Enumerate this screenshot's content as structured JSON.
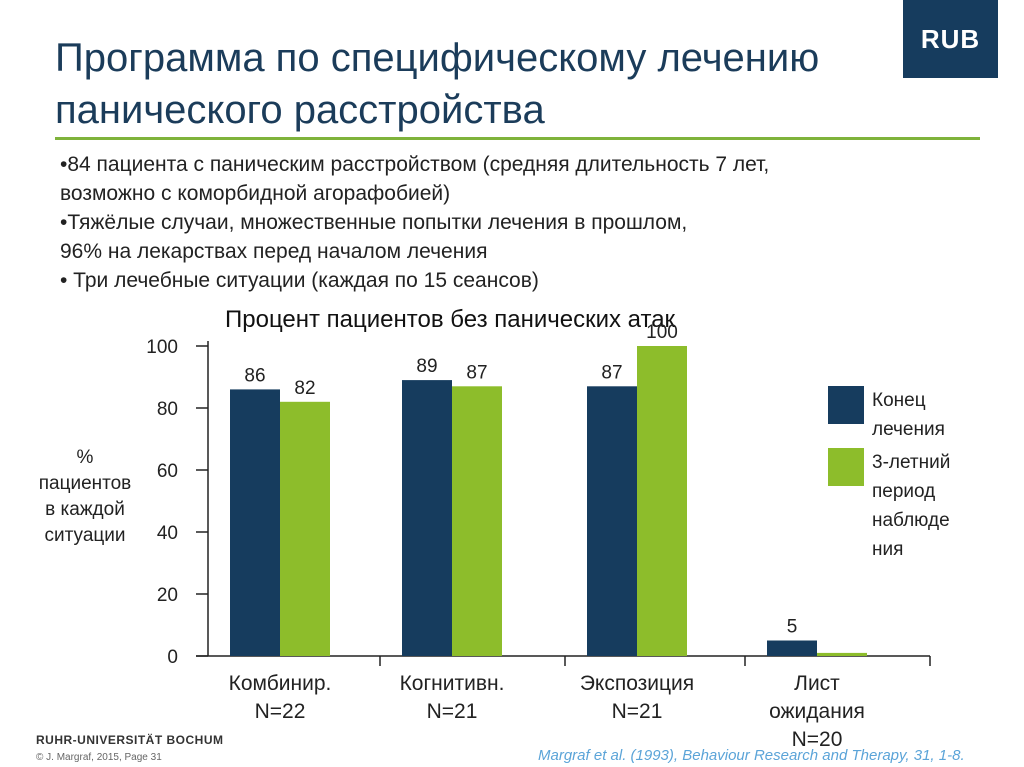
{
  "slide": {
    "title_line1": "Программа по специфическому лечению",
    "title_line2": "панического расстройства",
    "logo": "RUB",
    "bullets": [
      "•84 пациента с паническим расстройством (средняя длительность 7 лет,",
      "возможно с коморбидной агорафобией)",
      "•Тяжёлые случаи, множественные попытки лечения в прошлом,",
      "96% на лекарствах перед началом лечения",
      "• Три лечебные ситуации (каждая по 15 сеансов)"
    ],
    "footer_university": "RUHR-UNIVERSITÄT BOCHUM",
    "footer_copyright": "© J. Margraf, 2015, Page 31",
    "reference": "Margraf et al. (1993), Behaviour Research and Therapy, 31, 1-8."
  },
  "colors": {
    "navy": "#163c5e",
    "green": "#8dbd2b",
    "title": "#1b3c5a"
  },
  "chart_data": {
    "type": "bar",
    "title": "Процент пациентов без панических атак",
    "ylabel_lines": [
      "%",
      "пациентов",
      "в каждой",
      "ситуации"
    ],
    "ylim": [
      0,
      100
    ],
    "yticks": [
      "0",
      "20",
      "40",
      "60",
      "80",
      "100"
    ],
    "categories": [
      [
        "Комбинир.",
        "N=22"
      ],
      [
        "Когнитивн.",
        "N=21"
      ],
      [
        "Экспозиция",
        "N=21"
      ],
      [
        "Лист",
        "ожидания",
        "N=20"
      ]
    ],
    "series": [
      {
        "name": "Конец лечения",
        "legend_lines": [
          "Конец",
          "лечения"
        ],
        "values": [
          86,
          89,
          87,
          5
        ],
        "labels": [
          "86",
          "89",
          "87",
          "5"
        ]
      },
      {
        "name": "3-летний период наблюдения",
        "legend_lines": [
          "3-летний",
          "период",
          "наблюде",
          "ния"
        ],
        "values": [
          82,
          87,
          100,
          1
        ],
        "labels": [
          "82",
          "87",
          "100",
          ""
        ]
      }
    ]
  }
}
